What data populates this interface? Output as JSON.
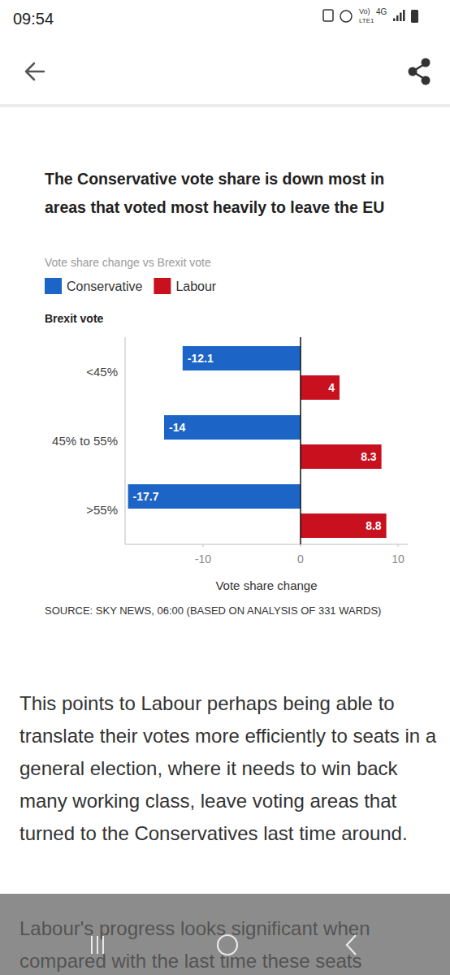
{
  "page": {
    "status_bar": {
      "time": "09:54",
      "indicators": [
        "Vo)",
        "LTE1",
        "4G"
      ]
    },
    "article": {
      "paragraphs": [
        "This points to Labour perhaps being able to translate their votes more efficiently to seats in a general election, where it needs to win back many working class, leave voting areas that turned to the Conservatives last time around.",
        "Labour's progress looks significant when compared with the last time these seats"
      ]
    }
  },
  "chart_data": {
    "type": "bar",
    "orientation": "horizontal",
    "title": "The Conservative vote share is down most in areas that voted most heavily to leave the EU",
    "subtitle": "Vote share change vs Brexit vote",
    "y_label": "Brexit vote",
    "x_label": "Vote share change",
    "source": "SOURCE: SKY NEWS, 06:00 (BASED ON ANALYSIS OF 331 WARDS)",
    "categories": [
      "<45%",
      "45% to 55%",
      ">55%"
    ],
    "series": [
      {
        "name": "Conservative",
        "color": "#1c64c6",
        "values": [
          -12.1,
          -14,
          -17.7
        ]
      },
      {
        "name": "Labour",
        "color": "#c8101e",
        "values": [
          4,
          8.3,
          8.8
        ]
      }
    ],
    "xlim": [
      -18,
      11
    ],
    "xticks": [
      -10,
      0,
      10
    ],
    "grid": false,
    "legend": "top-left",
    "data_labels": true
  }
}
